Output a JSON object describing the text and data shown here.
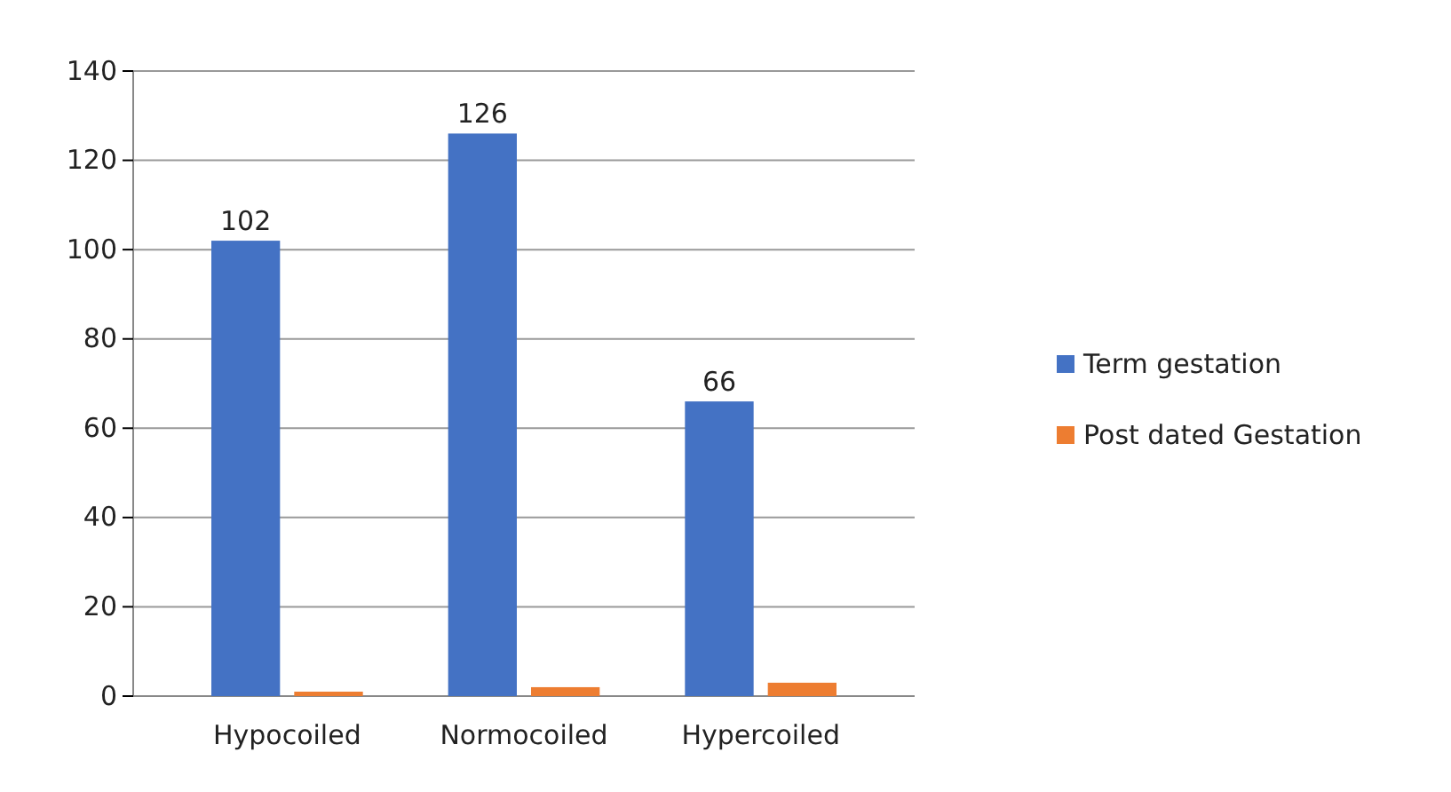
{
  "chart_data": {
    "type": "bar",
    "categories": [
      "Hypocoiled",
      "Normocoiled",
      "Hypercoiled"
    ],
    "series": [
      {
        "name": "Term gestation",
        "color": "#4472c4",
        "values": [
          102,
          126,
          66
        ],
        "value_labels": [
          "102",
          "126",
          "66"
        ]
      },
      {
        "name": "Post dated Gestation",
        "color": "#ed7d31",
        "values": [
          1,
          2,
          3
        ],
        "value_labels": [
          null,
          null,
          null
        ]
      }
    ],
    "ylim": [
      0,
      140
    ],
    "yticks": [
      0,
      20,
      40,
      60,
      80,
      100,
      120,
      140
    ],
    "grid": "y",
    "legend": "right"
  }
}
